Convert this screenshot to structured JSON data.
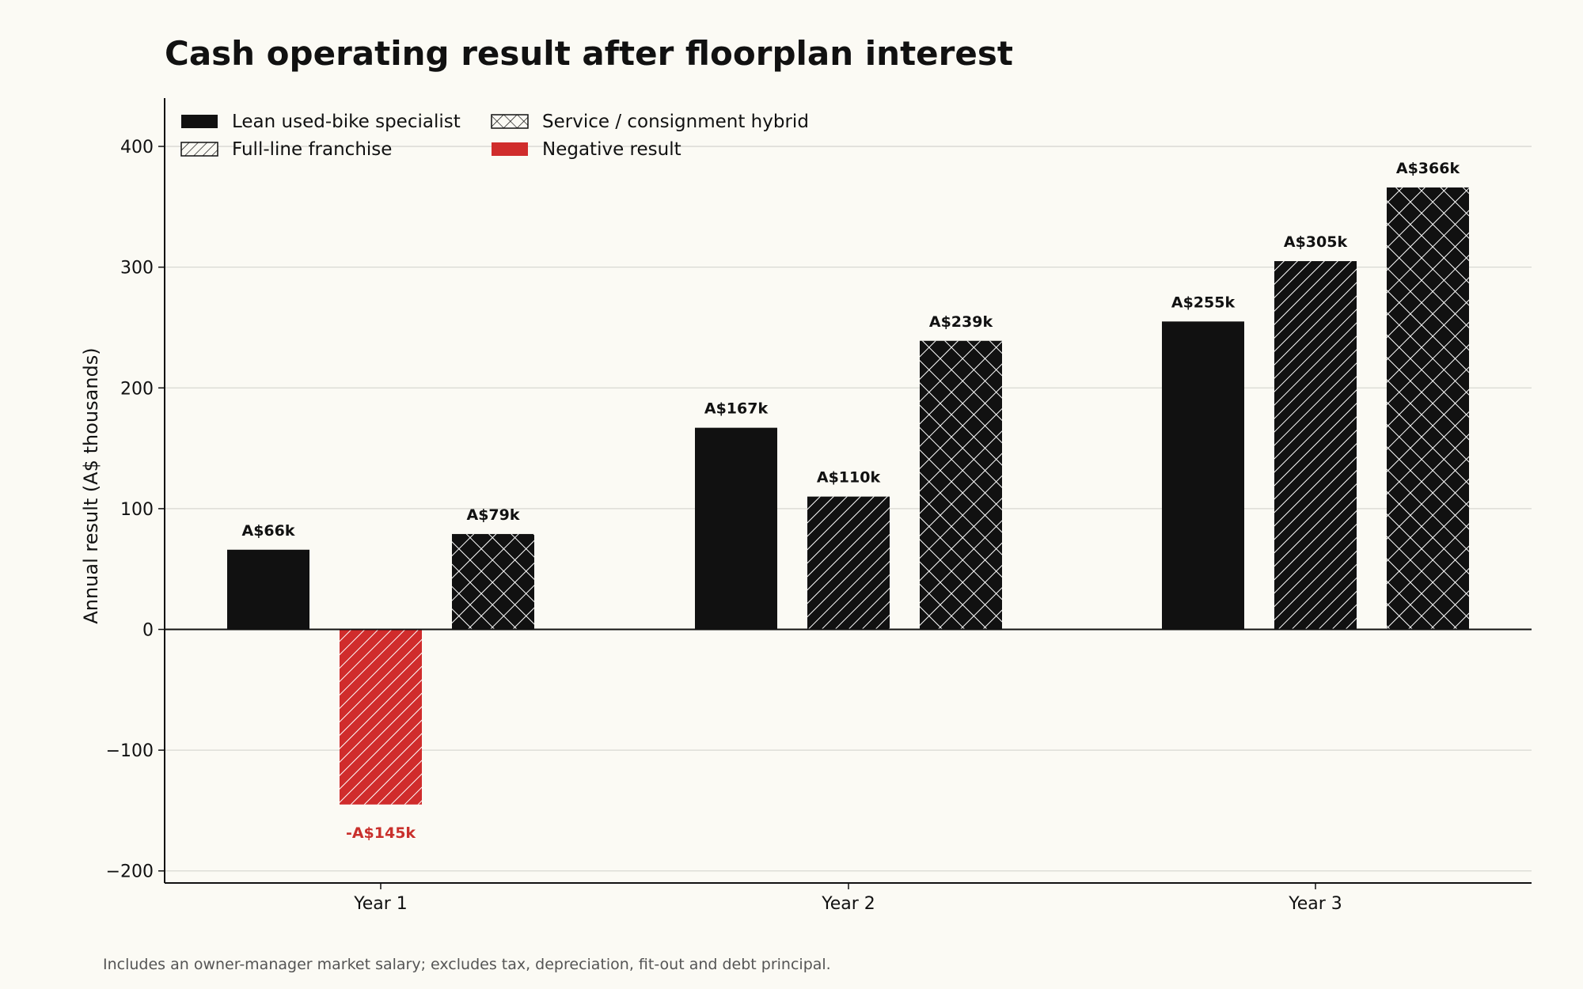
{
  "chart_data": {
    "type": "bar",
    "title": "Cash operating result after floorplan interest",
    "ylabel": "Annual result (A$ thousands)",
    "xlabel": "",
    "categories": [
      "Year 1",
      "Year 2",
      "Year 3"
    ],
    "ylim": [
      -210,
      440
    ],
    "yticks": [
      -200,
      -100,
      0,
      100,
      200,
      300,
      400
    ],
    "ytick_labels": [
      "−200",
      "−100",
      "0",
      "100",
      "200",
      "300",
      "400"
    ],
    "grid": true,
    "legend_position": "top-left",
    "series": [
      {
        "name": "Lean used-bike specialist",
        "pattern": "solid",
        "values": [
          66,
          167,
          255
        ],
        "labels": [
          "A$66k",
          "A$167k",
          "A$255k"
        ]
      },
      {
        "name": "Full-line franchise",
        "pattern": "diagonal-hatch",
        "values": [
          -145,
          110,
          305
        ],
        "labels": [
          "-A$145k",
          "A$110k",
          "A$305k"
        ]
      },
      {
        "name": "Service / consignment hybrid",
        "pattern": "cross-hatch",
        "values": [
          79,
          239,
          366
        ],
        "labels": [
          "A$79k",
          "A$239k",
          "A$366k"
        ]
      }
    ],
    "legend": [
      {
        "label": "Lean used-bike specialist",
        "swatch": "solid"
      },
      {
        "label": "Full-line franchise",
        "swatch": "diagonal-hatch"
      },
      {
        "label": "Service / consignment hybrid",
        "swatch": "cross-hatch"
      },
      {
        "label": "Negative result",
        "swatch": "negative"
      }
    ],
    "footnote": "Includes an owner-manager market salary; excludes tax, depreciation, fit-out and debt principal."
  },
  "colors": {
    "bar": "#111111",
    "negative": "#d02c2c",
    "negative_label": "#c9302c",
    "grid": "#d8d8d2",
    "axis": "#111111",
    "background": "#fbfaf4"
  }
}
